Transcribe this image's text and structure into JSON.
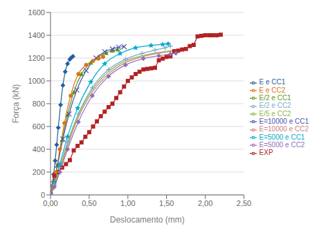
{
  "chart_data": {
    "type": "line",
    "title": "",
    "xlabel": "Deslocamento (mm)",
    "ylabel": "Força (kN)",
    "xlim": [
      0,
      2.5
    ],
    "ylim": [
      0,
      1600
    ],
    "xticks": [
      {
        "value": 0.0,
        "label": "0,00"
      },
      {
        "value": 0.5,
        "label": "0,50"
      },
      {
        "value": 1.0,
        "label": "1,00"
      },
      {
        "value": 1.5,
        "label": "1,50"
      },
      {
        "value": 2.0,
        "label": "2,00"
      },
      {
        "value": 2.5,
        "label": "2,50"
      }
    ],
    "yticks": [
      0,
      200,
      400,
      600,
      800,
      1000,
      1200,
      1400,
      1600
    ],
    "grid": "y",
    "legend": "right",
    "series": [
      {
        "name": "E e CC1",
        "color": "#2060A0",
        "marker": "diamond",
        "line_style": "solid",
        "type": "spline",
        "x": [
          0,
          0.02,
          0.04,
          0.06,
          0.08,
          0.1,
          0.13,
          0.16,
          0.19,
          0.22,
          0.25,
          0.27,
          0.29
        ],
        "values": [
          0,
          80,
          180,
          300,
          440,
          590,
          790,
          960,
          1080,
          1150,
          1190,
          1205,
          1215
        ]
      },
      {
        "name": "EXP",
        "color": "#B22222",
        "marker": "square",
        "line_style": "solid",
        "type": "line",
        "x": [
          0,
          0.05,
          0.1,
          0.15,
          0.2,
          0.25,
          0.3,
          0.35,
          0.4,
          0.45,
          0.5,
          0.55,
          0.6,
          0.65,
          0.7,
          0.75,
          0.8,
          0.85,
          0.9,
          0.95,
          1.0,
          1.05,
          1.1,
          1.15,
          1.2,
          1.25,
          1.3,
          1.35,
          1.4,
          1.45,
          1.5,
          1.55,
          1.6,
          1.65,
          1.7,
          1.75,
          1.8,
          1.85,
          1.9,
          1.95,
          2.0,
          2.05,
          2.1,
          2.15,
          2.2
        ],
        "values": [
          0,
          170,
          200,
          240,
          270,
          305,
          390,
          430,
          460,
          510,
          550,
          600,
          645,
          690,
          730,
          770,
          800,
          850,
          900,
          950,
          1000,
          1030,
          1060,
          1080,
          1100,
          1105,
          1110,
          1115,
          1180,
          1195,
          1210,
          1215,
          1260,
          1265,
          1275,
          1280,
          1305,
          1315,
          1390,
          1395,
          1400,
          1400,
          1400,
          1400,
          1405
        ]
      },
      {
        "name": "E/2 e CC1",
        "color": "#5A9A20",
        "marker": "triangle",
        "line_style": "solid",
        "type": "spline",
        "x": [
          0,
          0.04,
          0.09,
          0.15,
          0.22,
          0.3,
          0.4,
          0.52,
          0.62,
          0.72,
          0.8,
          0.87
        ],
        "values": [
          0,
          100,
          260,
          480,
          700,
          900,
          1060,
          1160,
          1210,
          1245,
          1265,
          1275
        ]
      },
      {
        "name": "E=10000 e CC1",
        "color": "#5050B0",
        "marker": "x",
        "line_style": "solid",
        "type": "spline",
        "x": [
          0,
          0.04,
          0.09,
          0.16,
          0.24,
          0.34,
          0.46,
          0.59,
          0.7,
          0.8,
          0.88,
          0.95
        ],
        "values": [
          0,
          100,
          260,
          490,
          710,
          920,
          1090,
          1200,
          1255,
          1280,
          1295,
          1300
        ]
      },
      {
        "name": "E=5000 e CC1",
        "color": "#00AACC",
        "marker": "star",
        "line_style": "solid",
        "type": "spline",
        "x": [
          0,
          0.05,
          0.12,
          0.22,
          0.35,
          0.52,
          0.7,
          0.9,
          1.1,
          1.3,
          1.45,
          1.52
        ],
        "values": [
          0,
          100,
          270,
          510,
          760,
          990,
          1150,
          1240,
          1290,
          1310,
          1320,
          1325
        ]
      },
      {
        "name": "E e CC2",
        "color": "#E07010",
        "marker": "circle",
        "line_style": "solid",
        "type": "spline",
        "x": [
          0,
          0.03,
          0.07,
          0.12,
          0.18,
          0.26,
          0.36,
          0.46,
          0.55,
          0.62,
          0.68
        ],
        "values": [
          0,
          80,
          200,
          400,
          630,
          870,
          1060,
          1140,
          1175,
          1195,
          1210
        ]
      },
      {
        "name": "E/2 e CC2",
        "color": "#7AAAD0",
        "marker": "plus",
        "line_style": "solid",
        "type": "spline",
        "x": [
          0,
          0.05,
          0.12,
          0.22,
          0.36,
          0.54,
          0.75,
          0.97,
          1.18,
          1.35,
          1.48,
          1.55
        ],
        "values": [
          0,
          90,
          240,
          460,
          710,
          940,
          1100,
          1190,
          1240,
          1270,
          1290,
          1305
        ]
      },
      {
        "name": "E=10000 e CC2",
        "color": "#D08080",
        "marker": "none",
        "line_style": "solid",
        "type": "spline",
        "x": [
          0,
          0.05,
          0.12,
          0.22,
          0.36,
          0.54,
          0.75,
          0.97,
          1.18,
          1.38,
          1.52,
          1.6
        ],
        "values": [
          0,
          80,
          220,
          430,
          680,
          900,
          1060,
          1160,
          1210,
          1240,
          1255,
          1265
        ]
      },
      {
        "name": "E/5 e CC2",
        "color": "#90B840",
        "marker": "none",
        "line_style": "solid",
        "type": "spline",
        "x": [
          0,
          0.05,
          0.12,
          0.22,
          0.36,
          0.54,
          0.75,
          0.97,
          1.18,
          1.38,
          1.52,
          1.6
        ],
        "values": [
          0,
          85,
          235,
          450,
          700,
          920,
          1080,
          1175,
          1220,
          1248,
          1262,
          1270
        ]
      },
      {
        "name": "E=5000 e CC2",
        "color": "#9070B8",
        "marker": "diamond",
        "line_style": "solid",
        "type": "spline",
        "x": [
          0,
          0.05,
          0.12,
          0.22,
          0.36,
          0.54,
          0.75,
          0.97,
          1.2,
          1.4,
          1.55,
          1.62
        ],
        "values": [
          0,
          70,
          200,
          400,
          640,
          870,
          1040,
          1140,
          1195,
          1220,
          1235,
          1242
        ]
      }
    ]
  }
}
